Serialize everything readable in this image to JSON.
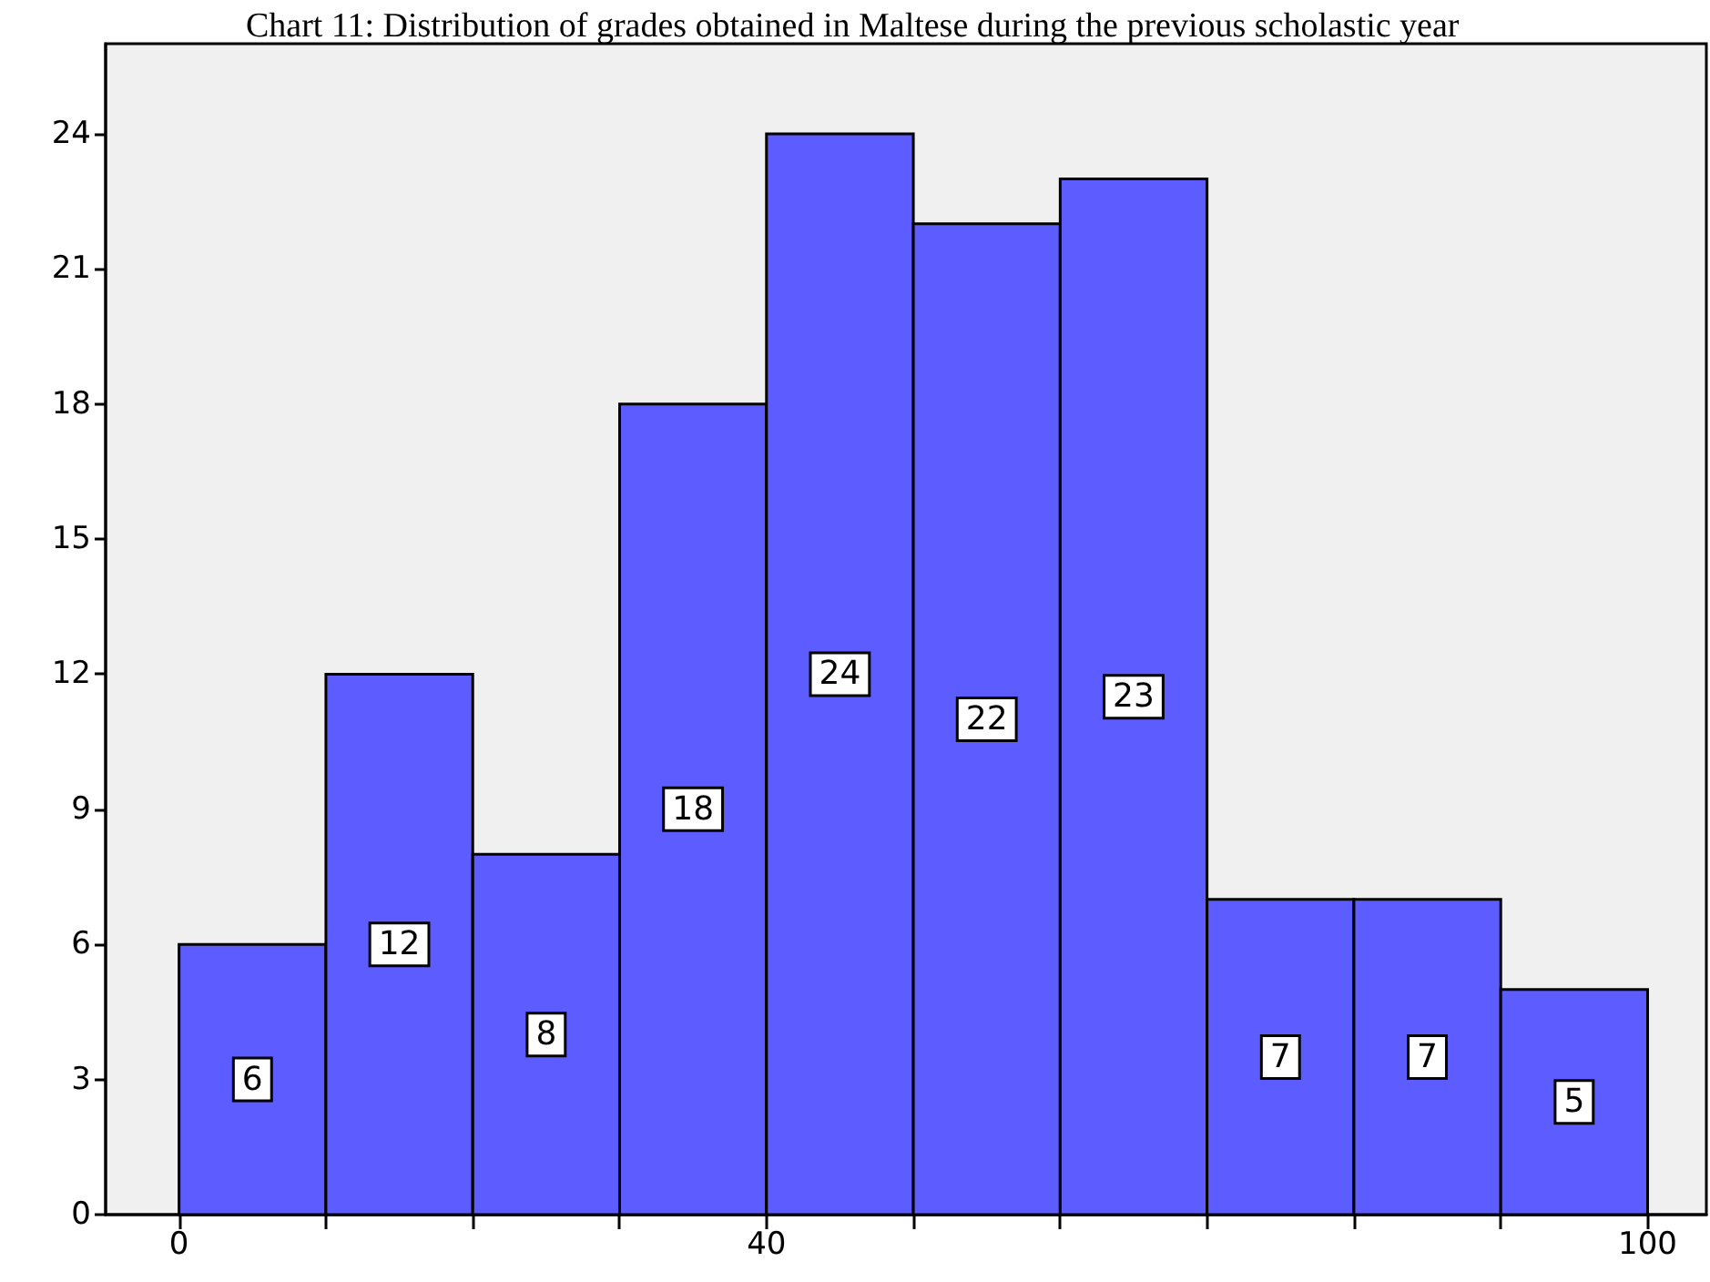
{
  "chart_data": {
    "type": "histogram",
    "title": "Chart 11: Distribution of grades obtained in Maltese during the previous scholastic year",
    "bins": [
      0,
      10,
      20,
      30,
      40,
      50,
      60,
      70,
      80,
      90,
      100
    ],
    "values": [
      6,
      12,
      8,
      18,
      24,
      22,
      23,
      7,
      7,
      5
    ],
    "color": "#5c5cff",
    "data_labels": true,
    "xlim": [
      -5,
      104
    ],
    "xticks": [
      0,
      {
        "value": 10,
        "label": null
      },
      {
        "value": 20,
        "label": null
      },
      {
        "value": 30,
        "label": null
      },
      40,
      {
        "value": 50,
        "label": null
      },
      {
        "value": 60,
        "label": null
      },
      {
        "value": 70,
        "label": null
      },
      {
        "value": 80,
        "label": null
      },
      {
        "value": 90,
        "label": null
      },
      100
    ],
    "ylim": [
      0,
      26
    ],
    "yticks": [
      0,
      3,
      6,
      9,
      12,
      15,
      18,
      21,
      24
    ],
    "grid": false
  }
}
